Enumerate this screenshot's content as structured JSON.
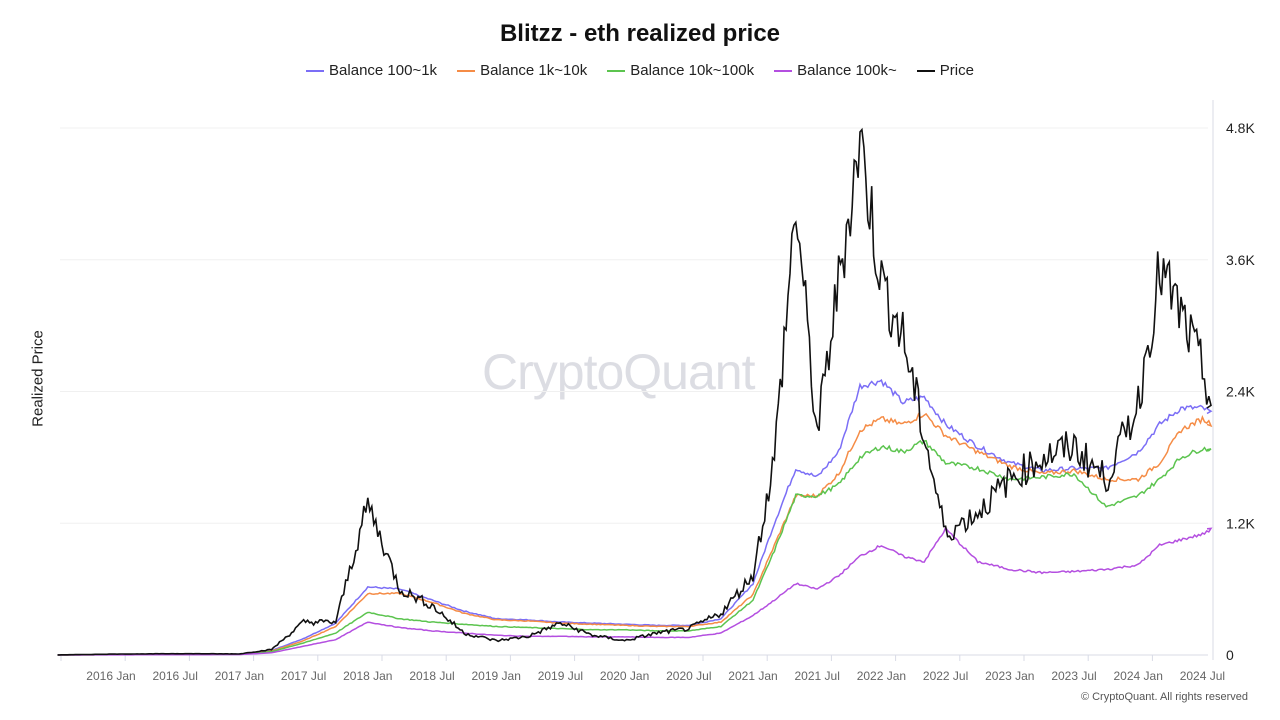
{
  "title": "Blitzz - eth realized price",
  "ylabel": "Realized Price",
  "watermark": "CryptoQuant",
  "copyright": "© CryptoQuant. All rights reserved",
  "legend": [
    {
      "label": "Balance 100~1k",
      "color": "#7b6ef6"
    },
    {
      "label": "Balance 1k~10k",
      "color": "#f58c46"
    },
    {
      "label": "Balance 10k~100k",
      "color": "#5cc44f"
    },
    {
      "label": "Balance 100k~",
      "color": "#b44fe0"
    },
    {
      "label": "Price",
      "color": "#111111"
    }
  ],
  "yaxis": {
    "ticks": [
      "0",
      "1.2K",
      "2.4K",
      "3.6K",
      "4.8K"
    ],
    "values": [
      0,
      1200,
      2400,
      3600,
      4800
    ]
  },
  "xaxis": {
    "ticks": [
      "2016 Jan",
      "2016 Jul",
      "2017 Jan",
      "2017 Jul",
      "2018 Jan",
      "2018 Jul",
      "2019 Jan",
      "2019 Jul",
      "2020 Jan",
      "2020 Jul",
      "2021 Jan",
      "2021 Jul",
      "2022 Jan",
      "2022 Jul",
      "2023 Jan",
      "2023 Jul",
      "2024 Jan",
      "2024 Jul"
    ]
  },
  "chart_data": {
    "type": "line",
    "title": "Blitzz - eth realized price",
    "xlabel": "",
    "ylabel": "Realized Price",
    "ylim": [
      0,
      4800
    ],
    "y_axis_position": "right",
    "grid": true,
    "legend_position": "top",
    "x": [
      "2015 Aug",
      "2016 Jan",
      "2016 Jul",
      "2017 Jan",
      "2017 Apr",
      "2017 Jul",
      "2017 Oct",
      "2018 Jan",
      "2018 Apr",
      "2018 Jul",
      "2018 Oct",
      "2019 Jan",
      "2019 Apr",
      "2019 Jul",
      "2019 Oct",
      "2020 Jan",
      "2020 Apr",
      "2020 Jul",
      "2020 Oct",
      "2021 Jan",
      "2021 Mar",
      "2021 May",
      "2021 Jul",
      "2021 Sep",
      "2021 Nov",
      "2022 Jan",
      "2022 Mar",
      "2022 May",
      "2022 Jul",
      "2022 Oct",
      "2023 Jan",
      "2023 Apr",
      "2023 Jul",
      "2023 Oct",
      "2024 Jan",
      "2024 Mar",
      "2024 May",
      "2024 Jul",
      "2024 Aug"
    ],
    "series": [
      {
        "name": "Balance 100~1k",
        "values": [
          0,
          2,
          5,
          8,
          40,
          150,
          290,
          620,
          600,
          500,
          400,
          330,
          320,
          300,
          290,
          280,
          270,
          270,
          330,
          650,
          1200,
          1700,
          1620,
          1850,
          2450,
          2500,
          2300,
          2350,
          2100,
          1900,
          1750,
          1680,
          1700,
          1700,
          1850,
          2100,
          2250,
          2250,
          2200
        ]
      },
      {
        "name": "Balance 1k~10k",
        "values": [
          0,
          2,
          4,
          7,
          35,
          130,
          260,
          560,
          560,
          480,
          380,
          320,
          310,
          290,
          280,
          270,
          260,
          260,
          300,
          550,
          1000,
          1450,
          1450,
          1650,
          2050,
          2150,
          2100,
          2200,
          2000,
          1850,
          1720,
          1650,
          1680,
          1600,
          1600,
          1750,
          2050,
          2150,
          2100
        ]
      },
      {
        "name": "Balance 10k~100k",
        "values": [
          0,
          2,
          4,
          6,
          30,
          110,
          200,
          390,
          330,
          300,
          280,
          260,
          250,
          240,
          230,
          230,
          220,
          220,
          260,
          500,
          950,
          1450,
          1450,
          1550,
          1800,
          1900,
          1850,
          1950,
          1750,
          1700,
          1600,
          1620,
          1650,
          1350,
          1450,
          1600,
          1800,
          1880,
          1870
        ]
      },
      {
        "name": "Balance 100k~",
        "values": [
          0,
          1,
          2,
          4,
          20,
          80,
          140,
          300,
          250,
          220,
          200,
          180,
          170,
          170,
          165,
          165,
          160,
          160,
          200,
          360,
          500,
          650,
          600,
          720,
          900,
          1000,
          900,
          850,
          1150,
          850,
          780,
          750,
          760,
          780,
          820,
          1000,
          1050,
          1100,
          1150
        ]
      },
      {
        "name": "Price",
        "values": [
          1,
          8,
          12,
          10,
          50,
          300,
          300,
          1380,
          600,
          450,
          200,
          130,
          170,
          290,
          180,
          130,
          200,
          240,
          380,
          730,
          1800,
          4100,
          2000,
          3400,
          4700,
          3400,
          2900,
          2000,
          1100,
          1300,
          1600,
          1800,
          1900,
          1600,
          2300,
          3500,
          3100,
          2600,
          2250
        ]
      }
    ]
  }
}
